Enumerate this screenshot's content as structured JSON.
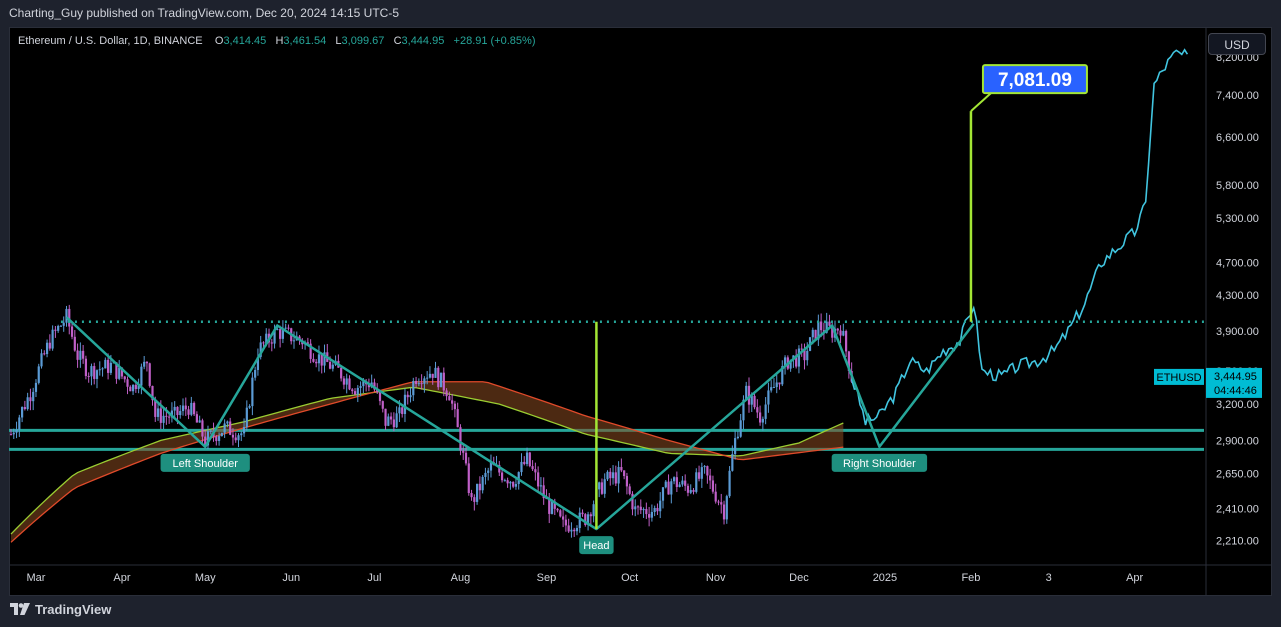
{
  "header": {
    "published_text": "Charting_Guy published on TradingView.com, Dec 20, 2024 14:15 UTC-5"
  },
  "legend": {
    "symbol": "Ethereum / U.S. Dollar, 1D, BINANCE",
    "o_label": "O",
    "o_value": "3,414.45",
    "h_label": "H",
    "h_value": "3,461.54",
    "l_label": "L",
    "l_value": "3,099.67",
    "c_label": "C",
    "c_value": "3,444.95",
    "change": "+28.91 (+0.85%)"
  },
  "currency_button": "USD",
  "footer": {
    "brand": "TradingView"
  },
  "colors": {
    "background": "#000000",
    "candle_up": "#5b9bd5",
    "candle_down": "#c060c8",
    "pattern_line": "#26a69a",
    "projection": "#41c5e0",
    "target": "#a3e635",
    "price_tag": "#00bcd4",
    "target_box": "#2962ff"
  },
  "chart_data": {
    "type": "line",
    "title": "Ethereum / U.S. Dollar, 1D, BINANCE",
    "scale": "log",
    "ylim": [
      2080,
      8800
    ],
    "y_ticks": [
      {
        "value": 8200,
        "label": "8,200.00"
      },
      {
        "value": 7400,
        "label": "7,400.00"
      },
      {
        "value": 6600,
        "label": "6,600.00"
      },
      {
        "value": 5800,
        "label": "5,800.00"
      },
      {
        "value": 5300,
        "label": "5,300.00"
      },
      {
        "value": 4700,
        "label": "4,700.00"
      },
      {
        "value": 4300,
        "label": "4,300.00"
      },
      {
        "value": 3900,
        "label": "3,900.00"
      },
      {
        "value": 3500,
        "label": "3,500.00"
      },
      {
        "value": 3200,
        "label": "3,200.00"
      },
      {
        "value": 2900,
        "label": "2,900.00"
      },
      {
        "value": 2650,
        "label": "2,650.00"
      },
      {
        "value": 2410,
        "label": "2,410.00"
      },
      {
        "value": 2210,
        "label": "2,210.00"
      }
    ],
    "x_ticks": [
      {
        "date": "2024-03-01",
        "label": "Mar"
      },
      {
        "date": "2024-04-01",
        "label": "Apr"
      },
      {
        "date": "2024-05-01",
        "label": "May"
      },
      {
        "date": "2024-06-01",
        "label": "Jun"
      },
      {
        "date": "2024-07-01",
        "label": "Jul"
      },
      {
        "date": "2024-08-01",
        "label": "Aug"
      },
      {
        "date": "2024-09-01",
        "label": "Sep"
      },
      {
        "date": "2024-10-01",
        "label": "Oct"
      },
      {
        "date": "2024-11-01",
        "label": "Nov"
      },
      {
        "date": "2024-12-01",
        "label": "Dec"
      },
      {
        "date": "2025-01-01",
        "label": "2025"
      },
      {
        "date": "2025-02-01",
        "label": "Feb"
      },
      {
        "date": "2025-03-01",
        "label": "3"
      },
      {
        "date": "2025-04-01",
        "label": "Apr"
      }
    ],
    "price_series": [
      [
        "2024-02-21",
        2950
      ],
      [
        "2024-02-28",
        3300
      ],
      [
        "2024-03-06",
        3800
      ],
      [
        "2024-03-12",
        4050
      ],
      [
        "2024-03-16",
        3650
      ],
      [
        "2024-03-20",
        3500
      ],
      [
        "2024-03-28",
        3550
      ],
      [
        "2024-04-05",
        3350
      ],
      [
        "2024-04-10",
        3600
      ],
      [
        "2024-04-13",
        3100
      ],
      [
        "2024-04-20",
        3100
      ],
      [
        "2024-04-25",
        3180
      ],
      [
        "2024-05-01",
        2900
      ],
      [
        "2024-05-08",
        3000
      ],
      [
        "2024-05-15",
        2950
      ],
      [
        "2024-05-20",
        3700
      ],
      [
        "2024-05-27",
        3900
      ],
      [
        "2024-06-05",
        3800
      ],
      [
        "2024-06-10",
        3650
      ],
      [
        "2024-06-18",
        3500
      ],
      [
        "2024-06-24",
        3350
      ],
      [
        "2024-06-30",
        3400
      ],
      [
        "2024-07-05",
        3050
      ],
      [
        "2024-07-10",
        3100
      ],
      [
        "2024-07-16",
        3450
      ],
      [
        "2024-07-22",
        3500
      ],
      [
        "2024-07-28",
        3300
      ],
      [
        "2024-08-05",
        2450
      ],
      [
        "2024-08-12",
        2700
      ],
      [
        "2024-08-20",
        2600
      ],
      [
        "2024-08-25",
        2750
      ],
      [
        "2024-09-01",
        2450
      ],
      [
        "2024-09-07",
        2300
      ],
      [
        "2024-09-15",
        2350
      ],
      [
        "2024-09-22",
        2600
      ],
      [
        "2024-09-28",
        2650
      ],
      [
        "2024-10-03",
        2400
      ],
      [
        "2024-10-10",
        2400
      ],
      [
        "2024-10-16",
        2600
      ],
      [
        "2024-10-22",
        2550
      ],
      [
        "2024-10-28",
        2650
      ],
      [
        "2024-11-04",
        2400
      ],
      [
        "2024-11-08",
        2900
      ],
      [
        "2024-11-12",
        3300
      ],
      [
        "2024-11-17",
        3100
      ],
      [
        "2024-11-22",
        3350
      ],
      [
        "2024-11-27",
        3600
      ],
      [
        "2024-12-03",
        3650
      ],
      [
        "2024-12-08",
        3950
      ],
      [
        "2024-12-13",
        3900
      ],
      [
        "2024-12-16",
        3950
      ],
      [
        "2024-12-20",
        3444.95
      ]
    ],
    "projection_series": [
      [
        "2024-12-20",
        3444.95
      ],
      [
        "2024-12-25",
        3050
      ],
      [
        "2024-12-30",
        3100
      ],
      [
        "2025-01-05",
        3300
      ],
      [
        "2025-01-10",
        3600
      ],
      [
        "2025-01-16",
        3500
      ],
      [
        "2025-01-22",
        3700
      ],
      [
        "2025-01-28",
        3800
      ],
      [
        "2025-02-02",
        4200
      ],
      [
        "2025-02-05",
        3500
      ],
      [
        "2025-02-12",
        3450
      ],
      [
        "2025-02-18",
        3550
      ],
      [
        "2025-02-25",
        3600
      ],
      [
        "2025-03-03",
        3700
      ],
      [
        "2025-03-08",
        3900
      ],
      [
        "2025-03-14",
        4200
      ],
      [
        "2025-03-20",
        4700
      ],
      [
        "2025-03-26",
        4900
      ],
      [
        "2025-04-01",
        5100
      ],
      [
        "2025-04-05",
        5500
      ],
      [
        "2025-04-08",
        7600
      ],
      [
        "2025-04-12",
        8000
      ],
      [
        "2025-04-16",
        8300
      ],
      [
        "2025-04-20",
        8200
      ]
    ],
    "ma_fast": [
      [
        "2024-02-21",
        2250
      ],
      [
        "2024-03-15",
        2650
      ],
      [
        "2024-04-15",
        2900
      ],
      [
        "2024-05-15",
        3050
      ],
      [
        "2024-06-15",
        3250
      ],
      [
        "2024-07-15",
        3350
      ],
      [
        "2024-08-15",
        3200
      ],
      [
        "2024-09-15",
        2950
      ],
      [
        "2024-10-15",
        2800
      ],
      [
        "2024-11-10",
        2780
      ],
      [
        "2024-12-01",
        2880
      ],
      [
        "2024-12-18",
        3050
      ]
    ],
    "ma_slow": [
      [
        "2024-02-21",
        2200
      ],
      [
        "2024-03-15",
        2550
      ],
      [
        "2024-04-15",
        2800
      ],
      [
        "2024-05-15",
        3000
      ],
      [
        "2024-06-15",
        3200
      ],
      [
        "2024-07-15",
        3400
      ],
      [
        "2024-08-10",
        3400
      ],
      [
        "2024-09-15",
        3100
      ],
      [
        "2024-10-15",
        2900
      ],
      [
        "2024-11-10",
        2750
      ],
      [
        "2024-12-18",
        2850
      ]
    ],
    "neckline": 4000,
    "support_upper": 2980,
    "support_lower": 2830,
    "hs_pattern": [
      [
        "2024-03-12",
        4050
      ],
      [
        "2024-05-01",
        2850
      ],
      [
        "2024-05-27",
        3960
      ],
      [
        "2024-09-19",
        2280
      ],
      [
        "2024-12-13",
        3960
      ],
      [
        "2024-12-30",
        2850
      ],
      [
        "2025-02-02",
        3980
      ]
    ],
    "annotations": [
      {
        "text": "Left Shoulder",
        "date": "2024-05-01",
        "price": 2850
      },
      {
        "text": "Head",
        "date": "2024-09-19",
        "price": 2280
      },
      {
        "text": "Right Shoulder",
        "date": "2024-12-30",
        "price": 2850
      }
    ],
    "target": {
      "value": 7081.09,
      "label": "7,081.09",
      "date": "2025-02-01"
    },
    "head_line": {
      "date": "2024-09-19",
      "from": 2280,
      "to": 4000
    },
    "last_price": {
      "symbol": "ETHUSD",
      "value": 3444.95,
      "label": "3,444.95",
      "countdown": "04:44:46"
    }
  }
}
